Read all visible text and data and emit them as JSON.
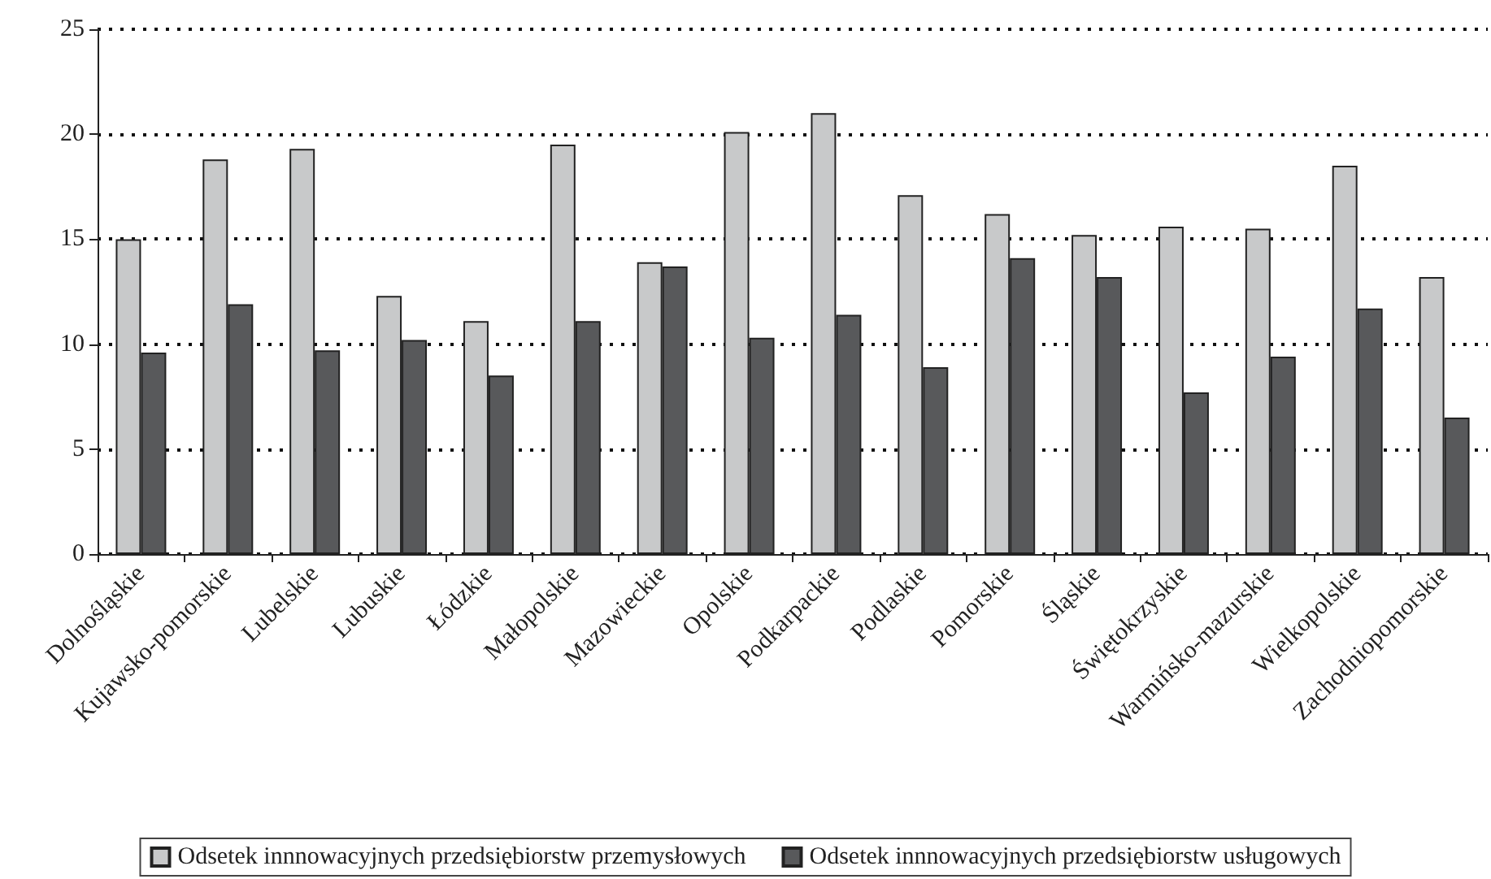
{
  "chart_data": {
    "type": "bar",
    "categories": [
      "Dolnośląskie",
      "Kujawsko-pomorskie",
      "Lubelskie",
      "Lubuskie",
      "Łódzkie",
      "Małopolskie",
      "Mazowieckie",
      "Opolskie",
      "Podkarpackie",
      "Podlaskie",
      "Pomorskie",
      "Śląskie",
      "Świętokrzyskie",
      "Warmińsko-mazurskie",
      "Wielkopolskie",
      "Zachodniopomorskie"
    ],
    "series": [
      {
        "name": "Odsetek innnowacyjnych przedsiębiorstw przemysłowych",
        "color": "#c8c9ca",
        "values": [
          15.0,
          18.8,
          19.3,
          12.3,
          11.1,
          19.5,
          13.9,
          20.1,
          21.0,
          17.1,
          16.2,
          15.2,
          15.6,
          15.5,
          18.5,
          13.2
        ]
      },
      {
        "name": "Odsetek innnowacyjnych przedsiębiorstw usługowych",
        "color": "#58595b",
        "values": [
          9.6,
          11.9,
          9.7,
          10.2,
          8.5,
          11.1,
          13.7,
          10.3,
          11.4,
          8.9,
          14.1,
          13.2,
          7.7,
          9.4,
          11.7,
          6.5
        ]
      }
    ],
    "ylim": [
      0,
      25
    ],
    "yticks": [
      0,
      5,
      10,
      15,
      20,
      25
    ],
    "grid": "y",
    "legend": "bottom"
  }
}
